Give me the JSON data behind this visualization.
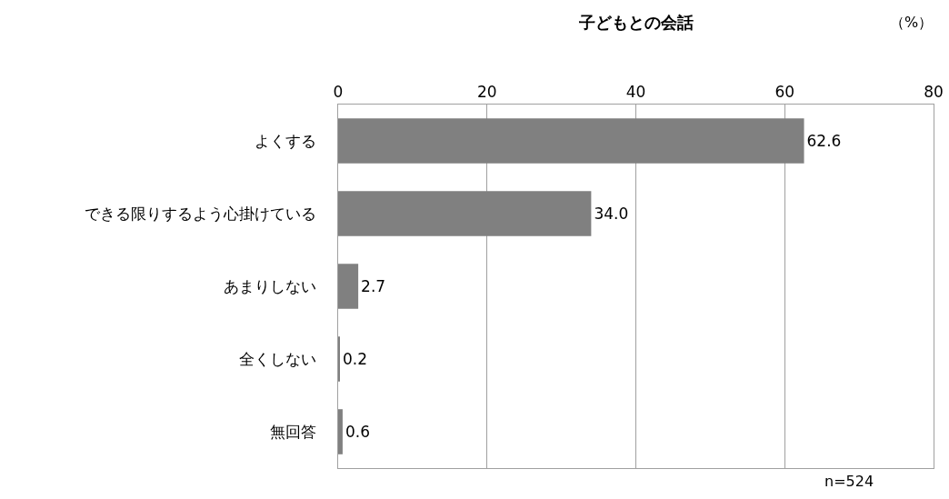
{
  "chart_data": {
    "type": "bar",
    "orientation": "horizontal",
    "title": "子どもとの会話",
    "categories": [
      "よくする",
      "できる限りするよう心掛けている",
      "あまりしない",
      "全くしない",
      "無回答"
    ],
    "values": [
      62.6,
      34.0,
      2.7,
      0.2,
      0.6
    ],
    "value_labels": [
      "62.6",
      "34.0",
      "2.7",
      "0.2",
      "0.6"
    ],
    "color": "#808080",
    "xlim": [
      0,
      80
    ],
    "xticks": [
      0,
      20,
      40,
      60,
      80
    ],
    "grid": "x",
    "annotations": [
      "（%）",
      "n=524"
    ]
  }
}
